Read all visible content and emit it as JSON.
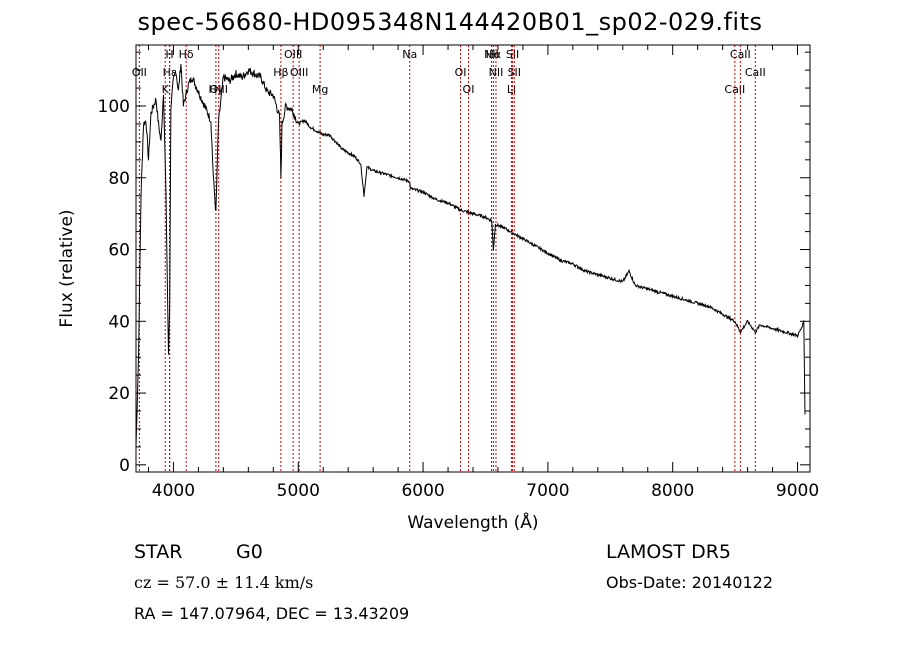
{
  "title": "spec-56680-HD095348N144420B01_sp02-029.fits",
  "info": {
    "class_label": "STAR",
    "subclass": "G0",
    "survey": "LAMOST  DR5",
    "cz": "cz = 57.0 ± 11.4 km/s",
    "obs_date": "Obs-Date: 20140122",
    "radec": "RA = 147.07964,  DEC =   13.43209"
  },
  "colors": {
    "spectrum": "#000000",
    "line_markers": "#cc0000",
    "axes": "#000000",
    "background": "#ffffff"
  },
  "chart_data": {
    "type": "line",
    "title": "spec-56680-HD095348N144420B01_sp02-029.fits",
    "xlabel": "Wavelength (Å)",
    "ylabel": "Flux (relative)",
    "xlim": [
      3700,
      9100
    ],
    "ylim": [
      -2,
      117
    ],
    "xticks": [
      4000,
      5000,
      6000,
      7000,
      8000,
      9000
    ],
    "yticks": [
      0,
      20,
      40,
      60,
      80,
      100
    ],
    "grid": false,
    "series": [
      {
        "x": [
          3700,
          3720,
          3740,
          3760,
          3780,
          3800,
          3820,
          3840,
          3860,
          3880,
          3900,
          3920,
          3940,
          3960,
          3970,
          3980,
          4000,
          4020,
          4040,
          4060,
          4080,
          4100,
          4120,
          4150,
          4200,
          4250,
          4300,
          4320,
          4340,
          4360,
          4400,
          4450,
          4500,
          4550,
          4600,
          4650,
          4700,
          4750,
          4800,
          4850,
          4861,
          4870,
          4900,
          4950,
          5000,
          5050,
          5100,
          5150,
          5200,
          5250,
          5300,
          5350,
          5400,
          5450,
          5500,
          5527,
          5550,
          5600,
          5700,
          5800,
          5890,
          5900,
          6000,
          6100,
          6200,
          6300,
          6400,
          6500,
          6550,
          6563,
          6580,
          6650,
          6700,
          6800,
          6900,
          7000,
          7100,
          7200,
          7300,
          7400,
          7500,
          7600,
          7650,
          7700,
          7800,
          7900,
          8000,
          8100,
          8200,
          8300,
          8400,
          8498,
          8542,
          8600,
          8662,
          8700,
          8800,
          8900,
          9000,
          9030,
          9050,
          9060
        ],
        "y": [
          5,
          30,
          75,
          95,
          96,
          85,
          98,
          100,
          102,
          95,
          90,
          104,
          75,
          30,
          45,
          100,
          107,
          110,
          104,
          112,
          100,
          103,
          106,
          108,
          104,
          100,
          96,
          80,
          70,
          95,
          108,
          107,
          109,
          108,
          110,
          109,
          108,
          104,
          103,
          97,
          80,
          95,
          100,
          99,
          95,
          96,
          94,
          93,
          92,
          92,
          90,
          88,
          87,
          86,
          84,
          75,
          83,
          82,
          81,
          80,
          79,
          77,
          76,
          74,
          73,
          71,
          70,
          69,
          68,
          60,
          67,
          66,
          65,
          63,
          61,
          59,
          57,
          56,
          54,
          53,
          52,
          51,
          54,
          50,
          49,
          48,
          47,
          46,
          45,
          44,
          42,
          40,
          37,
          40,
          37,
          39,
          38,
          37,
          36,
          38,
          40,
          14
        ]
      }
    ],
    "lines": [
      {
        "label": "Hα",
        "x": 6563
      },
      {
        "label": "Hβ",
        "x": 4861
      },
      {
        "label": "Hγ",
        "x": 4340
      },
      {
        "label": "Hδ",
        "x": 4102
      },
      {
        "label": "Hε",
        "x": 3970
      },
      {
        "label": "K",
        "x": 3934
      },
      {
        "label": "H",
        "x": 3969
      },
      {
        "label": "OII",
        "x": 3727
      },
      {
        "label": "OIII",
        "x": 4363
      },
      {
        "label": "OIII",
        "x": 4959
      },
      {
        "label": "OIII",
        "x": 5007
      },
      {
        "label": "Mg",
        "x": 5175
      },
      {
        "label": "Na",
        "x": 5893
      },
      {
        "label": "OI",
        "x": 6300
      },
      {
        "label": "OI",
        "x": 6364
      },
      {
        "label": "NII",
        "x": 6548
      },
      {
        "label": "NII",
        "x": 6584
      },
      {
        "label": "Li",
        "x": 6708
      },
      {
        "label": "SII",
        "x": 6717
      },
      {
        "label": "SII",
        "x": 6731
      },
      {
        "label": "CaII",
        "x": 8498
      },
      {
        "label": "CaII",
        "x": 8542
      },
      {
        "label": "CaII",
        "x": 8662
      }
    ]
  }
}
